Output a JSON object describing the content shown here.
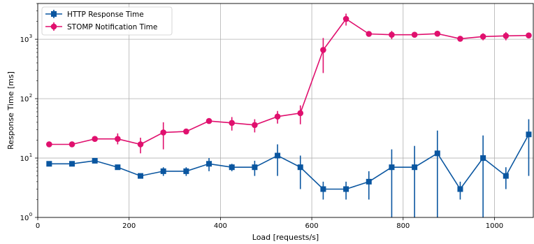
{
  "chart_data": {
    "type": "line",
    "title": "",
    "xlabel": "Load [requests/s]",
    "ylabel": "Response Time [ms]",
    "xlim": [
      0,
      1085
    ],
    "ylim": [
      1,
      4000
    ],
    "yscale": "log",
    "grid": true,
    "legend_position": "top-left",
    "x_ticks": [
      0,
      200,
      400,
      600,
      800,
      1000
    ],
    "y_ticks": [
      {
        "value": 1,
        "label": "10",
        "exp": "0"
      },
      {
        "value": 10,
        "label": "10",
        "exp": "1"
      },
      {
        "value": 100,
        "label": "10",
        "exp": "2"
      },
      {
        "value": 1000,
        "label": "10",
        "exp": "3"
      }
    ],
    "series": [
      {
        "name": "HTTP Response Time",
        "color": "#0a56a0",
        "marker": "square",
        "points": [
          {
            "x": 25,
            "y": 8,
            "lo": 8,
            "hi": 8
          },
          {
            "x": 75,
            "y": 8,
            "lo": 8,
            "hi": 8
          },
          {
            "x": 125,
            "y": 9,
            "lo": 9,
            "hi": 9
          },
          {
            "x": 175,
            "y": 7,
            "lo": 7,
            "hi": 7
          },
          {
            "x": 225,
            "y": 5,
            "lo": 5,
            "hi": 5
          },
          {
            "x": 275,
            "y": 6,
            "lo": 5,
            "hi": 7
          },
          {
            "x": 325,
            "y": 6,
            "lo": 5,
            "hi": 7
          },
          {
            "x": 375,
            "y": 8,
            "lo": 6,
            "hi": 10
          },
          {
            "x": 425,
            "y": 7,
            "lo": 6,
            "hi": 8
          },
          {
            "x": 475,
            "y": 7,
            "lo": 5,
            "hi": 9
          },
          {
            "x": 525,
            "y": 11,
            "lo": 5,
            "hi": 17
          },
          {
            "x": 575,
            "y": 7,
            "lo": 3,
            "hi": 11
          },
          {
            "x": 625,
            "y": 3,
            "lo": 2,
            "hi": 4
          },
          {
            "x": 675,
            "y": 3,
            "lo": 2,
            "hi": 4
          },
          {
            "x": 725,
            "y": 4,
            "lo": 2,
            "hi": 6
          },
          {
            "x": 775,
            "y": 7,
            "lo": 1,
            "hi": 14
          },
          {
            "x": 825,
            "y": 7,
            "lo": 1,
            "hi": 16
          },
          {
            "x": 875,
            "y": 12,
            "lo": 1,
            "hi": 29
          },
          {
            "x": 925,
            "y": 3,
            "lo": 2,
            "hi": 4
          },
          {
            "x": 975,
            "y": 10,
            "lo": 1,
            "hi": 24
          },
          {
            "x": 1025,
            "y": 5,
            "lo": 3,
            "hi": 7
          },
          {
            "x": 1075,
            "y": 25,
            "lo": 5,
            "hi": 45
          }
        ]
      },
      {
        "name": "STOMP Notification Time",
        "color": "#e0106e",
        "marker": "circle",
        "points": [
          {
            "x": 25,
            "y": 17,
            "lo": 17,
            "hi": 17
          },
          {
            "x": 75,
            "y": 17,
            "lo": 17,
            "hi": 17
          },
          {
            "x": 125,
            "y": 21,
            "lo": 21,
            "hi": 21
          },
          {
            "x": 175,
            "y": 21,
            "lo": 17,
            "hi": 26
          },
          {
            "x": 225,
            "y": 17,
            "lo": 12,
            "hi": 22
          },
          {
            "x": 275,
            "y": 27,
            "lo": 14,
            "hi": 40
          },
          {
            "x": 325,
            "y": 28,
            "lo": 28,
            "hi": 28
          },
          {
            "x": 375,
            "y": 42,
            "lo": 42,
            "hi": 42
          },
          {
            "x": 425,
            "y": 39,
            "lo": 29,
            "hi": 49
          },
          {
            "x": 475,
            "y": 36,
            "lo": 27,
            "hi": 45
          },
          {
            "x": 525,
            "y": 50,
            "lo": 38,
            "hi": 62
          },
          {
            "x": 575,
            "y": 57,
            "lo": 37,
            "hi": 77
          },
          {
            "x": 625,
            "y": 660,
            "lo": 270,
            "hi": 1050
          },
          {
            "x": 675,
            "y": 2200,
            "lo": 1700,
            "hi": 2700
          },
          {
            "x": 725,
            "y": 1230,
            "lo": 1230,
            "hi": 1230
          },
          {
            "x": 775,
            "y": 1190,
            "lo": 1000,
            "hi": 1380
          },
          {
            "x": 825,
            "y": 1190,
            "lo": 1190,
            "hi": 1190
          },
          {
            "x": 875,
            "y": 1240,
            "lo": 1240,
            "hi": 1240
          },
          {
            "x": 925,
            "y": 1020,
            "lo": 1020,
            "hi": 1020
          },
          {
            "x": 975,
            "y": 1110,
            "lo": 960,
            "hi": 1260
          },
          {
            "x": 1025,
            "y": 1140,
            "lo": 960,
            "hi": 1320
          },
          {
            "x": 1075,
            "y": 1160,
            "lo": 1160,
            "hi": 1160
          }
        ]
      }
    ]
  }
}
